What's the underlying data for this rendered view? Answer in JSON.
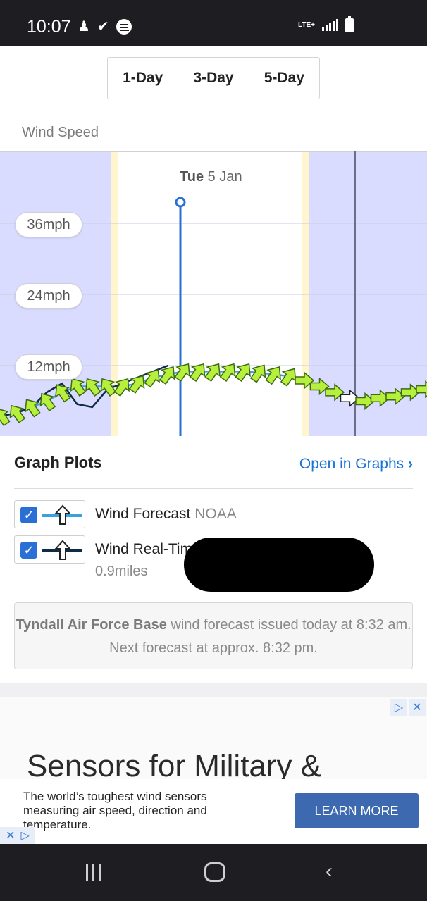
{
  "status_bar": {
    "time": "10:07",
    "network": "LTE+"
  },
  "range_tabs": [
    {
      "label": "1-Day",
      "active": true
    },
    {
      "label": "3-Day",
      "active": false
    },
    {
      "label": "5-Day",
      "active": false
    }
  ],
  "wind_section": {
    "title": "Wind Speed"
  },
  "chart_data": {
    "type": "line",
    "title": "Wind Speed",
    "day_label_bold": "Tue",
    "day_label_date": "5 Jan",
    "y_tick_labels": [
      "36mph",
      "24mph",
      "12mph"
    ],
    "ylim": [
      0,
      48
    ],
    "series": [
      {
        "name": "Wind Forecast",
        "color": "#3aa0e0",
        "x_hours": [
          0,
          1,
          2,
          3,
          4,
          5,
          6,
          7,
          8,
          9,
          10,
          11,
          12,
          13,
          14,
          15,
          16,
          17,
          18,
          19,
          20,
          21,
          22,
          23,
          24,
          25,
          26,
          27,
          28
        ],
        "values": [
          3.5,
          4,
          5,
          6,
          7.5,
          8.5,
          8.5,
          8.5,
          8.5,
          9,
          10,
          10.5,
          11,
          11,
          11,
          11,
          11,
          10.8,
          10.5,
          10.2,
          9.5,
          8.5,
          7.5,
          6.5,
          6,
          6.5,
          6.8,
          7.5,
          8
        ]
      },
      {
        "name": "Wind Real-Time",
        "color": "#0e2c45",
        "x_hours": [
          0,
          1,
          2,
          3,
          4,
          5,
          6,
          7,
          8,
          9,
          10,
          11
        ],
        "values": [
          3.5,
          4,
          5,
          7.5,
          9,
          5.5,
          5,
          8,
          9,
          10,
          11,
          12
        ]
      }
    ]
  },
  "graph_plots": {
    "title": "Graph Plots",
    "open_link": "Open in Graphs",
    "open_chevron": "›",
    "items": [
      {
        "label": "Wind Forecast",
        "source": "NOAA",
        "line_color": "#3aa0e0",
        "checked": true
      },
      {
        "label": "Wind Real-Tim",
        "sub": "0.9miles",
        "line_color": "#0e2c45",
        "checked": true
      }
    ]
  },
  "forecast_info": {
    "location": "Tyndall Air Force Base",
    "text": " wind forecast issued today at 8:32 am. Next forecast at approx. 8:32 pm."
  },
  "ad": {
    "headline": "Sensors for Military &",
    "body": "The world’s toughest wind sensors measuring air speed, direction and temperature.",
    "cta": "LEARN MORE",
    "close": "✕",
    "adchoices": "▷"
  },
  "nav": {
    "back_glyph": "‹"
  }
}
